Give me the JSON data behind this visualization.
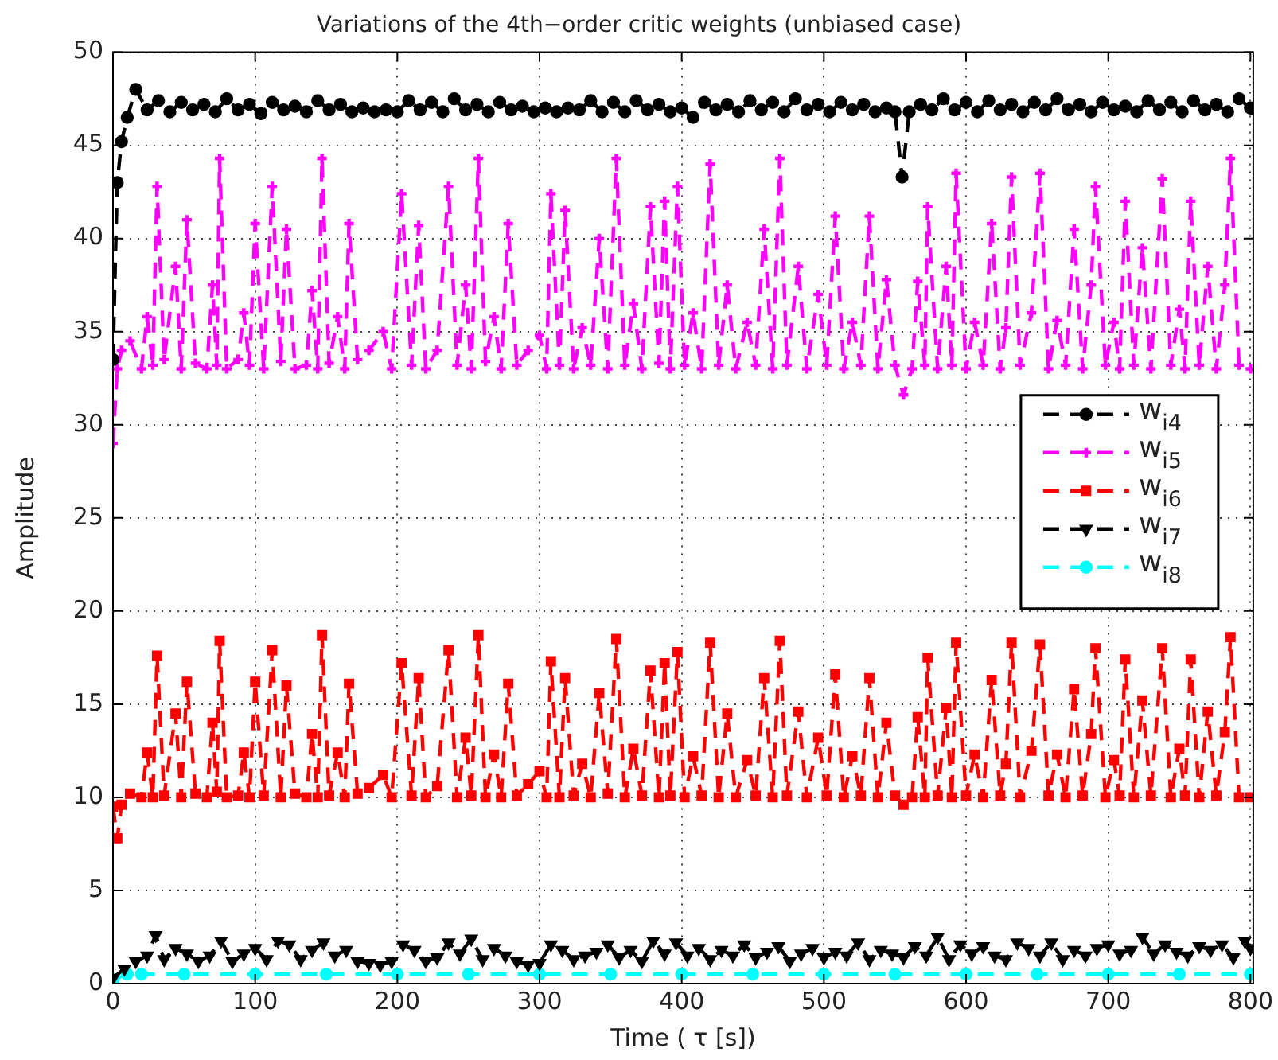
{
  "chart_data": {
    "type": "line",
    "title": "Variations of the 4th−order critic weights (unbiased case)",
    "xlabel": "Time ( τ [s])",
    "ylabel": "Amplitude",
    "xlim": [
      0,
      802
    ],
    "ylim": [
      0,
      50
    ],
    "xticks": [
      0,
      100,
      200,
      300,
      400,
      500,
      600,
      700,
      800
    ],
    "yticks": [
      0,
      5,
      10,
      15,
      20,
      25,
      30,
      35,
      40,
      45,
      50
    ],
    "grid": true,
    "legend": "right",
    "line_style": "dashed",
    "series": [
      {
        "name": "w$_{i4}$",
        "color": "#000000",
        "marker": "circle",
        "x": [
          0,
          3,
          6,
          10,
          16,
          24,
          32,
          40,
          48,
          56,
          64,
          72,
          80,
          88,
          96,
          104,
          112,
          120,
          128,
          136,
          144,
          152,
          160,
          168,
          176,
          184,
          192,
          200,
          208,
          216,
          224,
          232,
          240,
          248,
          256,
          264,
          272,
          280,
          288,
          296,
          304,
          312,
          320,
          328,
          336,
          344,
          352,
          360,
          368,
          376,
          384,
          392,
          400,
          408,
          416,
          424,
          432,
          440,
          448,
          456,
          464,
          472,
          480,
          488,
          496,
          504,
          512,
          520,
          528,
          536,
          544,
          550,
          555,
          560,
          568,
          576,
          584,
          592,
          600,
          608,
          616,
          624,
          632,
          640,
          648,
          656,
          664,
          672,
          680,
          688,
          696,
          704,
          712,
          720,
          728,
          736,
          744,
          752,
          760,
          768,
          776,
          784,
          792,
          800
        ],
        "values": [
          33.5,
          43,
          45.2,
          46.5,
          48,
          46.9,
          47.4,
          46.8,
          47.3,
          46.9,
          47.2,
          46.8,
          47.5,
          46.9,
          47.2,
          46.7,
          47.3,
          46.9,
          47.1,
          46.8,
          47.4,
          46.9,
          47.2,
          46.8,
          47,
          46.8,
          46.9,
          46.8,
          47.4,
          46.9,
          47.3,
          46.8,
          47.5,
          46.9,
          47.2,
          46.8,
          47.3,
          46.9,
          47.1,
          46.8,
          47,
          46.8,
          47,
          46.9,
          47.4,
          46.8,
          47.3,
          46.8,
          47.4,
          46.9,
          47.2,
          46.8,
          47,
          46.5,
          47.3,
          46.9,
          47.2,
          46.8,
          47.4,
          46.9,
          47.3,
          46.8,
          47.5,
          46.9,
          47.2,
          46.8,
          47.3,
          46.9,
          47.2,
          46.8,
          47,
          46.8,
          43.3,
          46.8,
          47.2,
          46.9,
          47.5,
          46.9,
          47.3,
          46.8,
          47.4,
          46.9,
          47.2,
          46.8,
          47.3,
          46.9,
          47.5,
          46.9,
          47.2,
          46.8,
          47.3,
          46.9,
          47.1,
          46.8,
          47.4,
          46.9,
          47.3,
          46.8,
          47.4,
          46.9,
          47.2,
          46.8,
          47.5,
          47
        ]
      },
      {
        "name": "w$_{i5}$",
        "color": "#ff00ff",
        "marker": "cross",
        "x": [
          0,
          3,
          6,
          12,
          20,
          24,
          28,
          31,
          36,
          44,
          48,
          52,
          58,
          66,
          70,
          73,
          75,
          80,
          88,
          92,
          96,
          100,
          106,
          112,
          118,
          122,
          128,
          136,
          140,
          144,
          147,
          152,
          158,
          163,
          166,
          172,
          180,
          190,
          196,
          203,
          210,
          215,
          220,
          228,
          236,
          242,
          248,
          252,
          257,
          262,
          268,
          273,
          278,
          284,
          292,
          300,
          305,
          308,
          314,
          318,
          324,
          330,
          336,
          342,
          348,
          354,
          360,
          366,
          372,
          378,
          384,
          388,
          392,
          397,
          402,
          408,
          414,
          420,
          426,
          432,
          438,
          446,
          452,
          458,
          464,
          469,
          474,
          482,
          488,
          496,
          502,
          508,
          514,
          520,
          526,
          532,
          538,
          544,
          550,
          556,
          562,
          566,
          571,
          573,
          580,
          586,
          590,
          593,
          600,
          606,
          612,
          618,
          624,
          628,
          632,
          638,
          646,
          652,
          658,
          664,
          670,
          676,
          682,
          688,
          691,
          698,
          704,
          708,
          712,
          718,
          724,
          730,
          738,
          744,
          750,
          754,
          758,
          764,
          770,
          776,
          782,
          786,
          792,
          800
        ],
        "values": [
          29,
          33,
          34,
          34.5,
          33,
          35.8,
          33.2,
          42.8,
          33.5,
          38.5,
          33,
          41,
          33.3,
          33,
          37.5,
          33.2,
          44.3,
          33,
          33.5,
          36,
          33.2,
          40.8,
          33,
          42.8,
          33.4,
          40.5,
          33,
          33.2,
          37.2,
          33,
          44.3,
          33.3,
          35.8,
          33,
          40.8,
          33.5,
          34,
          35,
          33,
          42.4,
          33.2,
          40.7,
          33,
          34,
          42.8,
          33.2,
          37.5,
          33,
          44.3,
          33.4,
          35.8,
          33,
          40.8,
          33.2,
          34,
          34.8,
          33,
          42.4,
          33.2,
          41.5,
          33,
          35.2,
          33.2,
          40,
          33,
          44.3,
          33.2,
          36.5,
          33,
          41.7,
          33.3,
          42,
          33,
          42.8,
          33.2,
          36,
          33,
          44,
          33.2,
          37.5,
          33,
          35.5,
          33.2,
          40.5,
          33,
          44.3,
          33.2,
          38.5,
          33,
          37,
          33.2,
          41.2,
          33,
          35.5,
          33.2,
          41.2,
          33,
          37.8,
          33.2,
          31.6,
          33,
          37.7,
          33.2,
          41.7,
          33,
          38.5,
          33.2,
          43.5,
          33,
          35.5,
          33.2,
          40.8,
          33,
          35.2,
          43.3,
          33.2,
          36,
          43.5,
          33,
          35.6,
          33.2,
          40.5,
          33,
          37.5,
          42.8,
          33.2,
          35.5,
          33,
          42,
          33.2,
          39.5,
          33,
          43.2,
          33.2,
          36.2,
          33,
          42,
          33.2,
          38.5,
          33,
          37.5,
          44.3,
          33.2,
          33
        ]
      },
      {
        "name": "w$_{i6}$",
        "color": "#ff0000",
        "marker": "square",
        "x": [
          0,
          3,
          6,
          12,
          20,
          24,
          28,
          31,
          36,
          44,
          48,
          52,
          58,
          66,
          70,
          73,
          75,
          80,
          88,
          92,
          96,
          100,
          106,
          112,
          118,
          122,
          128,
          136,
          140,
          144,
          147,
          152,
          158,
          163,
          166,
          172,
          180,
          190,
          196,
          203,
          210,
          215,
          220,
          228,
          236,
          242,
          248,
          252,
          257,
          262,
          268,
          273,
          278,
          284,
          292,
          300,
          305,
          308,
          314,
          318,
          324,
          330,
          336,
          342,
          348,
          354,
          360,
          366,
          372,
          378,
          384,
          388,
          392,
          397,
          402,
          408,
          414,
          420,
          426,
          432,
          438,
          446,
          452,
          458,
          464,
          469,
          474,
          482,
          488,
          496,
          502,
          508,
          514,
          520,
          526,
          532,
          538,
          544,
          550,
          556,
          562,
          566,
          571,
          573,
          580,
          586,
          590,
          593,
          600,
          606,
          612,
          618,
          624,
          628,
          632,
          638,
          646,
          652,
          658,
          664,
          670,
          676,
          682,
          688,
          691,
          698,
          704,
          708,
          712,
          718,
          724,
          730,
          738,
          744,
          750,
          754,
          758,
          764,
          770,
          776,
          782,
          786,
          792,
          800
        ],
        "values": [
          9.5,
          7.8,
          9.6,
          10.2,
          10,
          12.4,
          10,
          17.6,
          10.1,
          14.5,
          10,
          16.2,
          10.2,
          10,
          14,
          10.3,
          18.4,
          10,
          10.1,
          12.4,
          10,
          16.2,
          10.1,
          17.9,
          10,
          16,
          10.2,
          10,
          13.4,
          10,
          18.7,
          10.1,
          12.4,
          10,
          16.1,
          10.2,
          10.5,
          11.2,
          10,
          17.2,
          10.1,
          16.4,
          10,
          10.6,
          17.9,
          10,
          13.2,
          10.1,
          18.7,
          10,
          12.3,
          10,
          16.1,
          10.1,
          10.7,
          11.4,
          10,
          17.3,
          10,
          16.4,
          10.1,
          11.8,
          10,
          15.6,
          10.2,
          18.5,
          10,
          12.6,
          10.1,
          16.8,
          10,
          17.2,
          10.1,
          17.8,
          10,
          12.2,
          10.1,
          18.3,
          10,
          14.5,
          10,
          12,
          10.1,
          16.4,
          10,
          18.4,
          10.1,
          14.6,
          10,
          13.2,
          10.1,
          16.6,
          10,
          12.2,
          10.1,
          16.4,
          10,
          14,
          10.1,
          9.6,
          10,
          14.3,
          10,
          17.5,
          10.1,
          14.8,
          10,
          18.3,
          10.1,
          12.3,
          10,
          16.3,
          10.1,
          11.8,
          18.3,
          10,
          12.5,
          18.2,
          10.1,
          12.3,
          10,
          15.8,
          10.1,
          13.4,
          18,
          10,
          12,
          10.1,
          17.4,
          10,
          15.2,
          10.1,
          18,
          10,
          12.6,
          10.1,
          17.4,
          10,
          14.6,
          10.1,
          13.5,
          18.6,
          10,
          10
        ]
      },
      {
        "name": "w$_{i7}$",
        "color": "#000000",
        "marker": "triangle",
        "x": [
          0,
          8,
          16,
          24,
          30,
          36,
          44,
          52,
          60,
          68,
          76,
          84,
          92,
          100,
          108,
          116,
          124,
          132,
          140,
          148,
          156,
          164,
          172,
          180,
          188,
          196,
          204,
          212,
          220,
          228,
          236,
          244,
          252,
          260,
          268,
          276,
          284,
          292,
          300,
          308,
          316,
          324,
          332,
          340,
          348,
          356,
          364,
          372,
          380,
          388,
          396,
          404,
          412,
          420,
          428,
          436,
          444,
          452,
          460,
          468,
          476,
          484,
          492,
          500,
          508,
          516,
          524,
          532,
          540,
          548,
          556,
          564,
          572,
          580,
          588,
          596,
          604,
          612,
          620,
          628,
          636,
          644,
          652,
          660,
          668,
          676,
          684,
          692,
          700,
          708,
          716,
          724,
          732,
          740,
          748,
          756,
          764,
          772,
          780,
          788,
          796,
          800
        ],
        "values": [
          0.3,
          0.8,
          1.2,
          1.5,
          2.6,
          1.3,
          1.9,
          1.6,
          1.2,
          1.5,
          2.3,
          1.2,
          1.6,
          1.9,
          1.3,
          2.3,
          2.1,
          1.3,
          1.8,
          2.2,
          1.5,
          1.8,
          1.2,
          1.1,
          1,
          1.2,
          2.1,
          1.8,
          1.2,
          1.4,
          2.2,
          1.6,
          2.4,
          1.3,
          1.9,
          1.5,
          1.2,
          1,
          1.1,
          2.1,
          1.8,
          1.3,
          1.5,
          1.7,
          2.1,
          1.4,
          1.8,
          1.2,
          2.3,
          1.6,
          2.2,
          1.5,
          1.9,
          1.3,
          1.8,
          1.5,
          2.1,
          1.4,
          1.7,
          2,
          1.2,
          1.6,
          1.9,
          1.4,
          1.7,
          1.5,
          2.2,
          1.3,
          1.8,
          1.6,
          1.4,
          2,
          1.5,
          2.5,
          1.3,
          2.1,
          1.6,
          2,
          1.5,
          1.3,
          2.2,
          1.9,
          1.5,
          2.2,
          1.3,
          1.8,
          1.5,
          1.9,
          2.1,
          1.6,
          1.8,
          2.5,
          1.6,
          2.1,
          1.7,
          1.5,
          2,
          1.8,
          2.1,
          1.4,
          2.3,
          1.9
        ]
      },
      {
        "name": "w$_{i8}$",
        "color": "#00ffff",
        "marker": "circle",
        "x": [
          0,
          10,
          20,
          50,
          100,
          150,
          200,
          250,
          300,
          350,
          400,
          450,
          500,
          550,
          600,
          650,
          700,
          750,
          800
        ],
        "values": [
          0.2,
          0.5,
          0.5,
          0.5,
          0.5,
          0.5,
          0.5,
          0.5,
          0.5,
          0.5,
          0.5,
          0.5,
          0.5,
          0.5,
          0.5,
          0.5,
          0.5,
          0.5,
          0.5
        ]
      }
    ]
  }
}
